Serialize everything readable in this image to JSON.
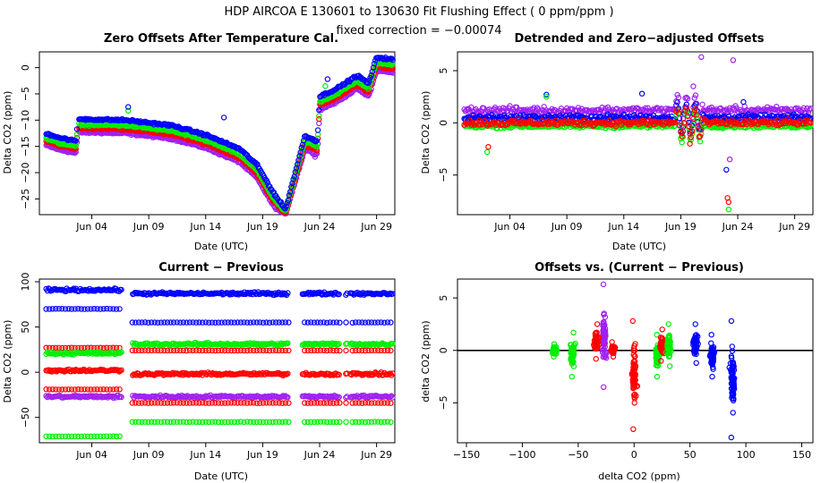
{
  "header": {
    "title": "HDP   AIRCOA E   130601 to 130630   Fit Flushing Effect ( 0 ppm/ppm )",
    "subtitle": "fixed correction = −0.00074"
  },
  "colors": {
    "blue": "#0000ff",
    "green": "#00ee00",
    "red": "#ff0000",
    "purple": "#a020f0"
  },
  "chart_data": [
    {
      "type": "scatter",
      "title": "Zero Offsets After Temperature Cal.",
      "xlabel": "Date (UTC)",
      "ylabel": "Delta CO2 (ppm)",
      "xlim": [
        -0.6,
        30.6
      ],
      "ylim": [
        -28,
        3
      ],
      "xticks": [
        4,
        9,
        14,
        19,
        24,
        29
      ],
      "xtick_labels": [
        "Jun 04",
        "Jun 09",
        "Jun 14",
        "Jun 19",
        "Jun 24",
        "Jun 29"
      ],
      "yticks": [
        -25,
        -20,
        -15,
        -10,
        -5,
        0
      ],
      "ytick_labels": [
        "−25",
        "−20",
        "−15",
        "−10",
        "−5",
        "0"
      ],
      "series": [
        {
          "name": "blue",
          "color": "#0000ff",
          "offset": 1.0,
          "curve": [
            [
              1,
              -12.5
            ],
            [
              2.4,
              -13.5
            ],
            [
              2.6,
              -13.5
            ],
            [
              3.6,
              -14
            ],
            [
              3.8,
              -9.8
            ],
            [
              8,
              -10
            ],
            [
              12,
              -11
            ],
            [
              15,
              -12.8
            ],
            [
              18,
              -15.5
            ],
            [
              19.5,
              -18.5
            ],
            [
              21,
              -24
            ],
            [
              22,
              -27
            ],
            [
              23.7,
              -13
            ],
            [
              24.8,
              -14
            ],
            [
              25,
              -5.5
            ],
            [
              26.5,
              -4
            ],
            [
              28.3,
              -1.5
            ],
            [
              29.3,
              -3
            ],
            [
              30,
              2
            ],
            [
              31.5,
              1.5
            ]
          ],
          "outliers": [
            [
              8.2,
              -7.5
            ],
            [
              16.6,
              -9.5
            ],
            [
              25.7,
              -2.2
            ]
          ]
        },
        {
          "name": "green",
          "color": "#00ee00",
          "offset": 0.1,
          "curve": [
            [
              1,
              -13.5
            ],
            [
              2.4,
              -14.5
            ],
            [
              2.6,
              -14.5
            ],
            [
              3.6,
              -15
            ],
            [
              3.8,
              -10.8
            ],
            [
              8,
              -11
            ],
            [
              12,
              -12
            ],
            [
              15,
              -13.8
            ],
            [
              18,
              -16.5
            ],
            [
              19.5,
              -19.5
            ],
            [
              21,
              -25
            ],
            [
              22,
              -27.5
            ],
            [
              23.7,
              -14
            ],
            [
              24.8,
              -15
            ],
            [
              25,
              -6.5
            ],
            [
              26.5,
              -5
            ],
            [
              28.3,
              -2.5
            ],
            [
              29.3,
              -4
            ],
            [
              30,
              1
            ],
            [
              31.5,
              0.5
            ]
          ],
          "outliers": [
            [
              8.2,
              -8.2
            ],
            [
              25.5,
              -3.5
            ]
          ]
        },
        {
          "name": "red",
          "color": "#ff0000",
          "offset": -0.6,
          "curve": [
            [
              1,
              -14
            ],
            [
              2.4,
              -15
            ],
            [
              2.6,
              -15
            ],
            [
              3.6,
              -15.5
            ],
            [
              3.8,
              -11.5
            ],
            [
              8,
              -11.7
            ],
            [
              12,
              -12.7
            ],
            [
              15,
              -14.5
            ],
            [
              18,
              -17.2
            ],
            [
              19.5,
              -20.2
            ],
            [
              21,
              -25.7
            ],
            [
              22,
              -27.8
            ],
            [
              23.7,
              -14.7
            ],
            [
              24.8,
              -15.7
            ],
            [
              25,
              -7.2
            ],
            [
              26.5,
              -5.7
            ],
            [
              28.3,
              -3.2
            ],
            [
              29.3,
              -4.7
            ],
            [
              30,
              0.3
            ],
            [
              31.5,
              -0.2
            ]
          ],
          "outliers": []
        },
        {
          "name": "purple",
          "color": "#a020f0",
          "offset": -1.5,
          "curve": [
            [
              1,
              -14.8
            ],
            [
              2.4,
              -15.8
            ],
            [
              2.6,
              -15.8
            ],
            [
              3.6,
              -16.3
            ],
            [
              3.8,
              -12.3
            ],
            [
              8,
              -12.5
            ],
            [
              12,
              -13.5
            ],
            [
              15,
              -15.3
            ],
            [
              18,
              -18
            ],
            [
              19.5,
              -21
            ],
            [
              21,
              -26.5
            ],
            [
              22,
              -28
            ],
            [
              23.7,
              -15.5
            ],
            [
              24.8,
              -16.5
            ],
            [
              25,
              -8
            ],
            [
              26.5,
              -6.5
            ],
            [
              28.3,
              -4
            ],
            [
              29.3,
              -5.5
            ],
            [
              30,
              -0.5
            ],
            [
              31.5,
              -1
            ]
          ],
          "outliers": [
            [
              24.6,
              -17
            ]
          ]
        }
      ]
    },
    {
      "type": "scatter",
      "title": "Detrended and Zero−adjusted Offsets",
      "xlabel": "Date (UTC)",
      "ylabel": "Delta CO2 (ppm)",
      "xlim": [
        -0.6,
        30.6
      ],
      "ylim": [
        -8.8,
        6.8
      ],
      "xticks": [
        4,
        9,
        14,
        19,
        24,
        29
      ],
      "xtick_labels": [
        "Jun 04",
        "Jun 09",
        "Jun 14",
        "Jun 19",
        "Jun 24",
        "Jun 29"
      ],
      "yticks": [
        -5,
        0,
        5
      ],
      "ytick_labels": [
        "−5",
        "0",
        "5"
      ],
      "series": [
        {
          "name": "purple",
          "color": "#a020f0",
          "level": 1.2,
          "spread": 0.5,
          "spikes": [
            [
              21.8,
              6.3
            ],
            [
              24.6,
              6
            ],
            [
              24.3,
              -3.5
            ],
            [
              21.1,
              3.5
            ]
          ]
        },
        {
          "name": "blue",
          "color": "#0000ff",
          "level": 0.5,
          "spread": 0.4,
          "spikes": [
            [
              8.2,
              2.7
            ],
            [
              16.6,
              2.8
            ],
            [
              24,
              -4.5
            ],
            [
              25.5,
              2
            ]
          ]
        },
        {
          "name": "green",
          "color": "#00ee00",
          "level": -0.3,
          "spread": 0.3,
          "spikes": [
            [
              3,
              -2.8
            ],
            [
              24.2,
              -8.3
            ],
            [
              8.2,
              2.5
            ]
          ]
        },
        {
          "name": "red",
          "color": "#ff0000",
          "level": 0.0,
          "spread": 0.4,
          "spikes": [
            [
              3.1,
              -2.3
            ],
            [
              24.1,
              -7.2
            ],
            [
              24.2,
              -7.6
            ],
            [
              20.8,
              -2
            ]
          ]
        }
      ]
    },
    {
      "type": "scatter",
      "title": "Current − Previous",
      "xlabel": "Date (UTC)",
      "ylabel": "Delta CO2 (ppm)",
      "xlim": [
        -0.6,
        30.6
      ],
      "ylim": [
        -78,
        103
      ],
      "xticks": [
        4,
        9,
        14,
        19,
        24,
        29
      ],
      "xtick_labels": [
        "Jun 04",
        "Jun 09",
        "Jun 14",
        "Jun 19",
        "Jun 24",
        "Jun 29"
      ],
      "yticks": [
        -50,
        0,
        50,
        100
      ],
      "ytick_labels": [
        "−50",
        "0",
        "50",
        "100"
      ],
      "bands": [
        {
          "color": "#0000ff",
          "before": 91,
          "after": 87,
          "solid": true
        },
        {
          "color": "#0000ff",
          "before": 70,
          "after": 55,
          "solid": false
        },
        {
          "color": "#ff0000",
          "before": 27,
          "after": 24,
          "solid": false
        },
        {
          "color": "#00ee00",
          "before": 21,
          "after": 31,
          "solid": true
        },
        {
          "color": "#ff0000",
          "before": 2,
          "after": -2,
          "solid": true
        },
        {
          "color": "#a020f0",
          "before": -27,
          "after": -27,
          "solid": true
        },
        {
          "color": "#ff0000",
          "before": -19,
          "after": -34,
          "solid": false
        },
        {
          "color": "#00ee00",
          "before": -71,
          "after": -55,
          "solid": false
        }
      ]
    },
    {
      "type": "scatter",
      "title": "Offsets vs. (Current − Previous)",
      "xlabel": "delta CO2 (ppm)",
      "ylabel": "delta CO2 (ppm)",
      "xlim": [
        -158,
        160
      ],
      "ylim": [
        -8.8,
        6.8
      ],
      "xticks": [
        -150,
        -100,
        -50,
        0,
        50,
        100,
        150
      ],
      "xtick_labels": [
        "−150",
        "−100",
        "−50",
        "0",
        "50",
        "100",
        "150"
      ],
      "yticks": [
        -5,
        0,
        5
      ],
      "ytick_labels": [
        "−5",
        "0",
        "5"
      ],
      "reference_line": {
        "slope": 0,
        "intercept": 0
      },
      "clusters": [
        {
          "color": "#00ee00",
          "x": -71,
          "ylo": -0.6,
          "yhi": 0.6
        },
        {
          "color": "#00ee00",
          "x": -55,
          "ylo": -2.5,
          "yhi": 1.7
        },
        {
          "color": "#a020f0",
          "x": -27,
          "ylo": -3.5,
          "yhi": 6.3
        },
        {
          "color": "#ff0000",
          "x": -34,
          "ylo": -0.8,
          "yhi": 2.5
        },
        {
          "color": "#ff0000",
          "x": -19,
          "ylo": -0.6,
          "yhi": 0.8
        },
        {
          "color": "#ff0000",
          "x": 0,
          "ylo": -7.5,
          "yhi": 2.8
        },
        {
          "color": "#00ee00",
          "x": 21,
          "ylo": -2.5,
          "yhi": 1.5
        },
        {
          "color": "#ff0000",
          "x": 25,
          "ylo": -1,
          "yhi": 2
        },
        {
          "color": "#00ee00",
          "x": 31,
          "ylo": -1.5,
          "yhi": 2.5
        },
        {
          "color": "#0000ff",
          "x": 55,
          "ylo": -1.2,
          "yhi": 2.5
        },
        {
          "color": "#0000ff",
          "x": 70,
          "ylo": -2.5,
          "yhi": 1.5
        },
        {
          "color": "#0000ff",
          "x": 88,
          "ylo": -8.3,
          "yhi": 2.8
        }
      ]
    }
  ]
}
